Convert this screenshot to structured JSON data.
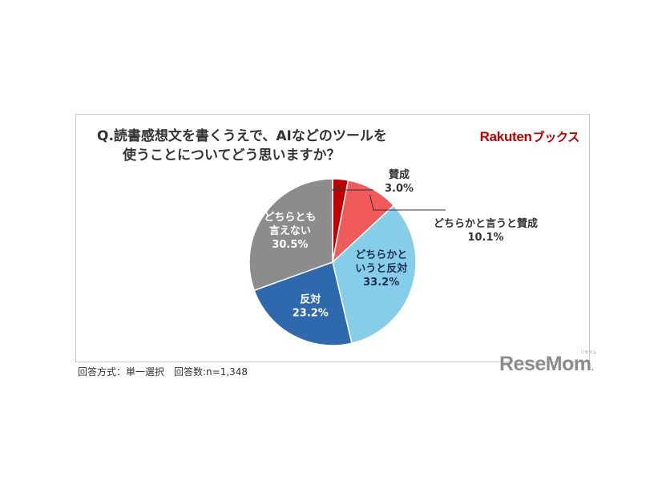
{
  "question": {
    "line1": "Q.読書感想文を書くうえで、AIなどのツールを",
    "line2": "使うことについてどう思いますか？"
  },
  "brand": {
    "name": "Rakuten",
    "suffix": "ブックス",
    "color": "#bf0000"
  },
  "footer": {
    "method": "回答方式：単一選択　回答数:n=1,348"
  },
  "watermark": {
    "text": "ReseMom",
    "ruby": "リセマム"
  },
  "chart_data": {
    "type": "pie",
    "start": "12 o'clock, clockwise",
    "slices": [
      {
        "lines": [
          "賛成"
        ],
        "value_label": "3.0%",
        "value": 3.0,
        "color": "#c00000",
        "label_color": "#333333",
        "placement": "outside"
      },
      {
        "lines": [
          "どちらかと言うと賛成"
        ],
        "value_label": "10.1%",
        "value": 10.1,
        "color": "#f05a5a",
        "label_color": "#333333",
        "placement": "outside"
      },
      {
        "lines": [
          "どちらかと",
          "いうと反対"
        ],
        "value_label": "33.2%",
        "value": 33.2,
        "color": "#86cde9",
        "label_color": "#1f2f4a",
        "placement": "inside"
      },
      {
        "lines": [
          "反対"
        ],
        "value_label": "23.2%",
        "value": 23.2,
        "color": "#2e68ad",
        "label_color": "#ffffff",
        "placement": "inside"
      },
      {
        "lines": [
          "どちらとも",
          "言えない"
        ],
        "value_label": "30.5%",
        "value": 30.5,
        "color": "#8c8c8c",
        "label_color": "#ffffff",
        "placement": "inside"
      }
    ]
  }
}
